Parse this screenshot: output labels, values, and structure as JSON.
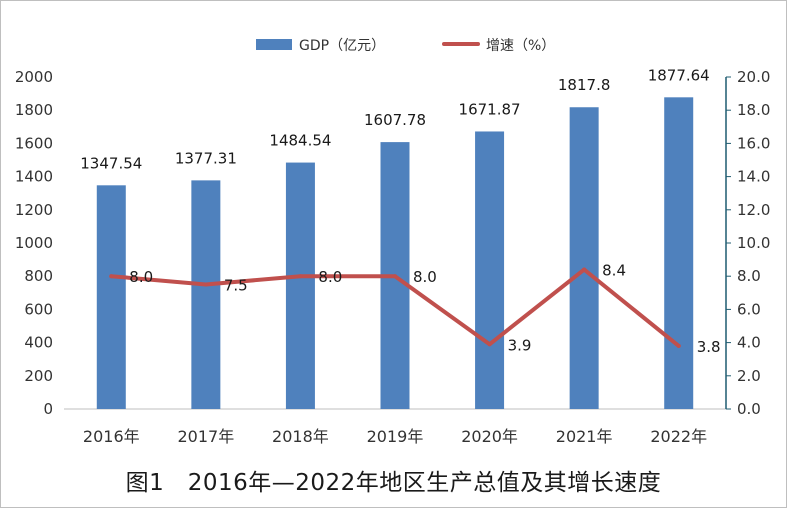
{
  "chart_data": {
    "type": "bar",
    "caption": "图1   2016年—2022年地区生产总值及其增长速度",
    "categories": [
      "2016年",
      "2017年",
      "2018年",
      "2019年",
      "2020年",
      "2021年",
      "2022年"
    ],
    "y_left": {
      "min": 0,
      "max": 2000,
      "step": 200,
      "ticks": [
        "0",
        "200",
        "400",
        "600",
        "800",
        "1000",
        "1200",
        "1400",
        "1600",
        "1800",
        "2000"
      ]
    },
    "y_right": {
      "min": 0,
      "max": 20,
      "step": 2,
      "ticks": [
        "0.0",
        "2.0",
        "4.0",
        "6.0",
        "8.0",
        "10.0",
        "12.0",
        "14.0",
        "16.0",
        "18.0",
        "20.0"
      ]
    },
    "grid": false,
    "legend_position": "top-center",
    "series": [
      {
        "name": "GDP（亿元）",
        "type": "bar",
        "axis": "left",
        "color": "#4f81bd",
        "values": [
          1347.54,
          1377.31,
          1484.54,
          1607.78,
          1671.87,
          1817.8,
          1877.64
        ],
        "labels": [
          "1347.54",
          "1377.31",
          "1484.54",
          "1607.78",
          "1671.87",
          "1817.8",
          "1877.64"
        ]
      },
      {
        "name": "增速（%）",
        "type": "line",
        "axis": "right",
        "color": "#c0504d",
        "values": [
          8.0,
          7.5,
          8.0,
          8.0,
          3.9,
          8.4,
          3.8
        ],
        "labels": [
          "8.0",
          "7.5",
          "8.0",
          "8.0",
          "3.9",
          "8.4",
          "3.8"
        ]
      }
    ]
  }
}
